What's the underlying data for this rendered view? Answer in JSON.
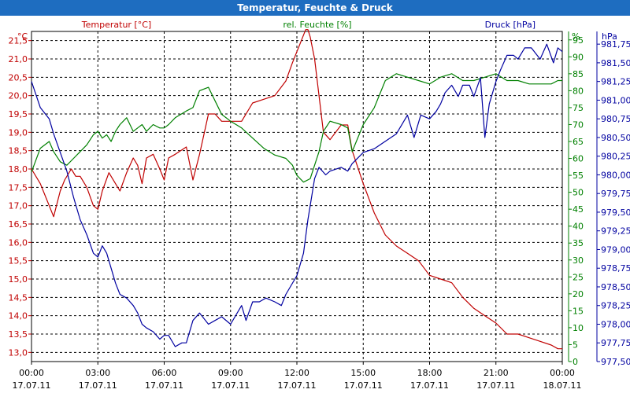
{
  "window": {
    "title": "Temperatur, Feuchte & Druck"
  },
  "colors": {
    "temperature": "#c00000",
    "humidity": "#008000",
    "pressure": "#0000a0",
    "titlebar": "#1e6dc0"
  },
  "chart_data": {
    "type": "line",
    "title": "Temperatur, Feuchte & Druck",
    "grid": true,
    "axes": {
      "left": {
        "label": "Temperatur [°C]",
        "unit": "°C",
        "min": 12.75,
        "max": 21.75,
        "ticks": [
          "13,0",
          "13,5",
          "14,0",
          "14,5",
          "15,0",
          "15,5",
          "16,0",
          "16,5",
          "17,0",
          "17,5",
          "18,0",
          "18,5",
          "19,0",
          "19,5",
          "20,0",
          "20,5",
          "21,0",
          "21,5"
        ]
      },
      "mid": {
        "label": "rel. Feuchte [%]",
        "unit": "%",
        "min": 0,
        "max": 97.5,
        "ticks": [
          "0",
          "5",
          "10",
          "15",
          "20",
          "25",
          "30",
          "35",
          "40",
          "45",
          "50",
          "55",
          "60",
          "65",
          "70",
          "75",
          "80",
          "85",
          "90",
          "95"
        ]
      },
      "right": {
        "label": "Druck [hPa]",
        "unit": "hPa",
        "min": 977.5,
        "max": 981.92,
        "ticks": [
          "977,50",
          "977,75",
          "978,00",
          "978,25",
          "978,50",
          "978,75",
          "979,00",
          "979,25",
          "979,50",
          "979,75",
          "980,00",
          "980,25",
          "980,50",
          "980,75",
          "981,00",
          "981,25",
          "981,50",
          "981,75"
        ]
      }
    },
    "x_ticks": [
      {
        "time": "00:00",
        "date": "17.07.11"
      },
      {
        "time": "03:00",
        "date": "17.07.11"
      },
      {
        "time": "06:00",
        "date": "17.07.11"
      },
      {
        "time": "09:00",
        "date": "17.07.11"
      },
      {
        "time": "12:00",
        "date": "17.07.11"
      },
      {
        "time": "15:00",
        "date": "17.07.11"
      },
      {
        "time": "18:00",
        "date": "17.07.11"
      },
      {
        "time": "21:00",
        "date": "17.07.11"
      },
      {
        "time": "00:00",
        "date": "18.07.11"
      }
    ],
    "x_range_hours": [
      0,
      24
    ],
    "series": [
      {
        "name": "Temperatur [°C]",
        "axis": "left",
        "x": [
          0,
          0.4,
          0.8,
          1.0,
          1.3,
          1.5,
          1.8,
          2.0,
          2.2,
          2.5,
          2.8,
          3.0,
          3.2,
          3.5,
          3.8,
          4.0,
          4.3,
          4.6,
          4.8,
          5.0,
          5.2,
          5.5,
          5.8,
          6.0,
          6.2,
          6.5,
          7.0,
          7.3,
          7.6,
          8.0,
          8.3,
          8.6,
          9.0,
          9.5,
          10.0,
          10.5,
          11.0,
          11.5,
          11.8,
          12.0,
          12.2,
          12.4,
          12.5,
          12.6,
          12.8,
          13.0,
          13.2,
          13.5,
          14.0,
          14.3,
          14.5,
          15.0,
          15.5,
          16.0,
          16.5,
          17.0,
          17.5,
          18.0,
          18.5,
          19.0,
          19.5,
          20.0,
          20.5,
          21.0,
          21.5,
          22.0,
          22.5,
          23.0,
          23.5,
          23.8,
          24.0
        ],
        "values": [
          18.0,
          17.6,
          17.0,
          16.7,
          17.4,
          17.7,
          18.0,
          17.8,
          17.8,
          17.5,
          17.0,
          16.9,
          17.4,
          17.9,
          17.6,
          17.4,
          17.9,
          18.3,
          18.1,
          17.6,
          18.3,
          18.4,
          18.0,
          17.7,
          18.3,
          18.4,
          18.6,
          17.7,
          18.4,
          19.5,
          19.5,
          19.3,
          19.3,
          19.3,
          19.8,
          19.9,
          20.0,
          20.4,
          20.9,
          21.2,
          21.5,
          21.8,
          21.8,
          21.6,
          21.0,
          20.0,
          19.0,
          18.8,
          19.2,
          19.2,
          18.5,
          17.6,
          16.8,
          16.2,
          15.9,
          15.7,
          15.5,
          15.1,
          15.0,
          14.9,
          14.5,
          14.2,
          14.0,
          13.8,
          13.5,
          13.5,
          13.4,
          13.3,
          13.2,
          13.1,
          13.1
        ]
      },
      {
        "name": "rel. Feuchte [%]",
        "axis": "mid",
        "x": [
          0,
          0.4,
          0.8,
          1.0,
          1.3,
          1.6,
          1.9,
          2.2,
          2.5,
          2.8,
          3.0,
          3.2,
          3.4,
          3.6,
          3.8,
          4.0,
          4.3,
          4.6,
          4.8,
          5.0,
          5.2,
          5.5,
          5.8,
          6.0,
          6.2,
          6.5,
          7.0,
          7.3,
          7.6,
          8.0,
          8.3,
          8.6,
          9.0,
          9.5,
          10.0,
          10.5,
          11.0,
          11.5,
          11.8,
          12.0,
          12.3,
          12.6,
          12.8,
          13.0,
          13.2,
          13.5,
          14.0,
          14.3,
          14.5,
          15.0,
          15.5,
          16.0,
          16.5,
          17.0,
          17.5,
          18.0,
          18.5,
          19.0,
          19.5,
          20.0,
          20.5,
          21.0,
          21.5,
          22.0,
          22.5,
          23.0,
          23.5,
          23.8,
          24.0
        ],
        "values": [
          56,
          63,
          65,
          62,
          59,
          58,
          60,
          62,
          64,
          67,
          68,
          66,
          67,
          65,
          68,
          70,
          72,
          68,
          69,
          70,
          68,
          70,
          69,
          69,
          70,
          72,
          74,
          75,
          80,
          81,
          77,
          73,
          71,
          69,
          66,
          63,
          61,
          60,
          58,
          55,
          53,
          54,
          58,
          62,
          68,
          71,
          70,
          69,
          62,
          70,
          75,
          83,
          85,
          84,
          83,
          82,
          84,
          85,
          83,
          83,
          84,
          85,
          83,
          83,
          82,
          82,
          82,
          83,
          83
        ]
      },
      {
        "name": "Druck [hPa]",
        "axis": "right",
        "x": [
          0,
          0.4,
          0.8,
          1.0,
          1.3,
          1.6,
          1.9,
          2.2,
          2.5,
          2.8,
          3.0,
          3.2,
          3.4,
          3.6,
          3.8,
          4.0,
          4.3,
          4.6,
          4.8,
          5.0,
          5.2,
          5.5,
          5.8,
          6.0,
          6.2,
          6.5,
          6.8,
          7.0,
          7.3,
          7.6,
          8.0,
          8.3,
          8.6,
          9.0,
          9.3,
          9.5,
          9.7,
          10.0,
          10.3,
          10.6,
          11.0,
          11.3,
          11.5,
          11.7,
          12.0,
          12.3,
          12.5,
          12.8,
          13.0,
          13.3,
          13.5,
          14.0,
          14.3,
          14.5,
          15.0,
          15.5,
          16.0,
          16.5,
          17.0,
          17.3,
          17.6,
          18.0,
          18.3,
          18.5,
          18.7,
          19.0,
          19.3,
          19.5,
          19.8,
          20.0,
          20.3,
          20.5,
          20.7,
          21.0,
          21.2,
          21.5,
          21.8,
          22.0,
          22.3,
          22.6,
          23.0,
          23.3,
          23.6,
          23.8,
          24.0
        ],
        "values": [
          981.25,
          980.9,
          980.75,
          980.55,
          980.3,
          980.05,
          979.7,
          979.4,
          979.2,
          978.95,
          978.9,
          979.05,
          978.95,
          978.75,
          978.55,
          978.4,
          978.35,
          978.25,
          978.15,
          978.0,
          977.95,
          977.9,
          977.8,
          977.85,
          977.85,
          977.7,
          977.75,
          977.75,
          978.05,
          978.15,
          978.0,
          978.05,
          978.1,
          978.0,
          978.15,
          978.25,
          978.05,
          978.3,
          978.3,
          978.35,
          978.3,
          978.25,
          978.4,
          978.5,
          978.65,
          978.95,
          979.4,
          979.95,
          980.1,
          980.0,
          980.05,
          980.1,
          980.05,
          980.15,
          980.3,
          980.35,
          980.45,
          980.55,
          980.8,
          980.5,
          980.8,
          980.75,
          980.85,
          980.95,
          981.1,
          981.2,
          981.05,
          981.2,
          981.2,
          981.05,
          981.3,
          980.5,
          980.95,
          981.25,
          981.4,
          981.6,
          981.6,
          981.55,
          981.7,
          981.7,
          981.55,
          981.75,
          981.5,
          981.7,
          981.65
        ]
      }
    ]
  }
}
